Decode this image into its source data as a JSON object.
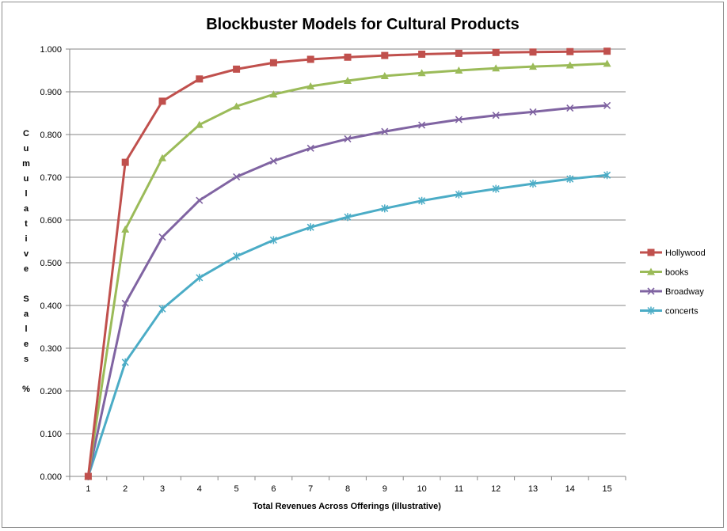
{
  "chart_data": {
    "type": "line",
    "title": "Blockbuster Models for Cultural Products",
    "xlabel": "Total Revenues Across Offerings (illustrative)",
    "ylabel": "Cumulative Sales %",
    "x": [
      1,
      2,
      3,
      4,
      5,
      6,
      7,
      8,
      9,
      10,
      11,
      12,
      13,
      14,
      15
    ],
    "ylim": [
      0,
      1
    ],
    "yticks": [
      "0.000",
      "0.100",
      "0.200",
      "0.300",
      "0.400",
      "0.500",
      "0.600",
      "0.700",
      "0.800",
      "0.900",
      "1.000"
    ],
    "grid": true,
    "legend_position": "right",
    "series": [
      {
        "name": "Hollywood",
        "color": "#C0504D",
        "marker": "square",
        "values": [
          0.0,
          0.735,
          0.878,
          0.93,
          0.953,
          0.968,
          0.976,
          0.981,
          0.985,
          0.988,
          0.99,
          0.992,
          0.993,
          0.994,
          0.995
        ]
      },
      {
        "name": "books",
        "color": "#9BBB59",
        "marker": "triangle",
        "values": [
          0.0,
          0.578,
          0.745,
          0.823,
          0.866,
          0.894,
          0.913,
          0.926,
          0.937,
          0.944,
          0.95,
          0.955,
          0.959,
          0.962,
          0.966
        ]
      },
      {
        "name": "Broadway",
        "color": "#8064A2",
        "marker": "x",
        "values": [
          0.0,
          0.405,
          0.56,
          0.646,
          0.701,
          0.738,
          0.768,
          0.79,
          0.807,
          0.822,
          0.835,
          0.845,
          0.853,
          0.862,
          0.868
        ]
      },
      {
        "name": "concerts",
        "color": "#4BACC6",
        "marker": "star",
        "values": [
          0.0,
          0.267,
          0.392,
          0.465,
          0.515,
          0.553,
          0.583,
          0.607,
          0.627,
          0.645,
          0.66,
          0.673,
          0.685,
          0.696,
          0.705
        ]
      }
    ]
  }
}
